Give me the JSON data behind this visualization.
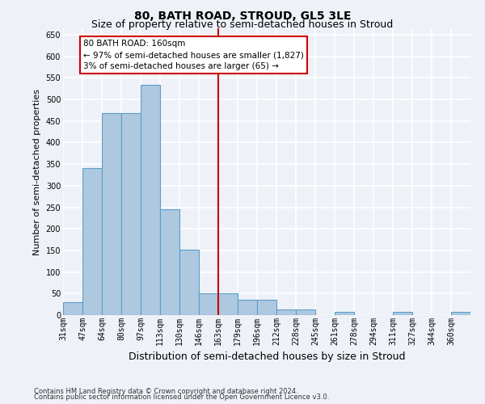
{
  "title": "80, BATH ROAD, STROUD, GL5 3LE",
  "subtitle": "Size of property relative to semi-detached houses in Stroud",
  "xlabel": "Distribution of semi-detached houses by size in Stroud",
  "ylabel": "Number of semi-detached properties",
  "footer1": "Contains HM Land Registry data © Crown copyright and database right 2024.",
  "footer2": "Contains public sector information licensed under the Open Government Licence v3.0.",
  "property_label": "80 BATH ROAD: 160sqm",
  "smaller_pct": 97,
  "smaller_count": 1827,
  "larger_pct": 3,
  "larger_count": 65,
  "bin_labels": [
    "31sqm",
    "47sqm",
    "64sqm",
    "80sqm",
    "97sqm",
    "113sqm",
    "130sqm",
    "146sqm",
    "163sqm",
    "179sqm",
    "196sqm",
    "212sqm",
    "228sqm",
    "245sqm",
    "261sqm",
    "278sqm",
    "294sqm",
    "311sqm",
    "327sqm",
    "344sqm",
    "360sqm"
  ],
  "bar_heights": [
    30,
    340,
    468,
    468,
    533,
    245,
    152,
    50,
    50,
    35,
    35,
    13,
    13,
    0,
    8,
    0,
    0,
    7,
    0,
    0,
    7
  ],
  "bar_color": "#aec8e0",
  "bar_edge_color": "#5b9ec9",
  "vline_bar_idx": 8,
  "vline_color": "#cc0000",
  "ylim": [
    0,
    665
  ],
  "yticks": [
    0,
    50,
    100,
    150,
    200,
    250,
    300,
    350,
    400,
    450,
    500,
    550,
    600,
    650
  ],
  "background_color": "#eef2f8",
  "grid_color": "#ffffff",
  "annotation_box_color": "#cc0000",
  "title_fontsize": 10,
  "subtitle_fontsize": 9,
  "ylabel_fontsize": 8,
  "xlabel_fontsize": 9,
  "tick_fontsize": 7,
  "footer_fontsize": 6
}
